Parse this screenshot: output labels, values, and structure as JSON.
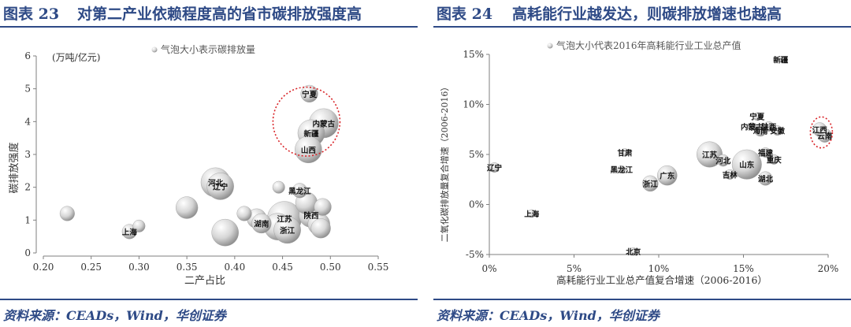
{
  "figures": [
    {
      "label": "图表 23",
      "title": "对第二产业依赖程度高的省市碳排放强度高",
      "source": "资料来源：CEADs，Wind，华创证券"
    },
    {
      "label": "图表 24",
      "title": "高耗能行业越发达，则碳排放增速也越高",
      "source": "资料来源：CEADs，Wind，华创证券"
    }
  ],
  "colors": {
    "accent": "#2e4a86",
    "highlight": "#d9262a",
    "bubble": "#d6d6d6",
    "axis": "#7f7f7f"
  },
  "chart_data": [
    {
      "type": "scatter",
      "subtype": "bubble",
      "title": "",
      "xlabel": "二产占比",
      "ylabel": "碳排放强度",
      "unit_label": "(万吨/亿元)",
      "legend": "气泡大小表示碳排放量",
      "legend_position": "top-center",
      "xlim": [
        0.2,
        0.55
      ],
      "ylim": [
        0,
        6
      ],
      "x_ticks": [
        "0.20",
        "0.25",
        "0.30",
        "0.35",
        "0.40",
        "0.45",
        "0.50",
        "0.55"
      ],
      "y_ticks": [
        "0",
        "1",
        "2",
        "3",
        "4",
        "5",
        "6"
      ],
      "grid": false,
      "highlight": {
        "type": "ellipse",
        "cx": 0.475,
        "cy": 4.0,
        "rx": 0.035,
        "ry": 1.05
      },
      "points": [
        {
          "x": 0.225,
          "y": 1.2,
          "size": 6,
          "label": ""
        },
        {
          "x": 0.29,
          "y": 0.65,
          "size": 6,
          "label": "上海"
        },
        {
          "x": 0.3,
          "y": 0.82,
          "size": 5,
          "label": ""
        },
        {
          "x": 0.35,
          "y": 1.38,
          "size": 9,
          "label": ""
        },
        {
          "x": 0.38,
          "y": 2.15,
          "size": 12,
          "label": "河北"
        },
        {
          "x": 0.385,
          "y": 2.03,
          "size": 11,
          "label": "辽宁"
        },
        {
          "x": 0.39,
          "y": 0.62,
          "size": 11,
          "label": ""
        },
        {
          "x": 0.41,
          "y": 1.2,
          "size": 6,
          "label": ""
        },
        {
          "x": 0.423,
          "y": 1.05,
          "size": 8,
          "label": ""
        },
        {
          "x": 0.428,
          "y": 0.9,
          "size": 8,
          "label": "湖南"
        },
        {
          "x": 0.445,
          "y": 0.8,
          "size": 11,
          "label": ""
        },
        {
          "x": 0.446,
          "y": 2.0,
          "size": 5,
          "label": ""
        },
        {
          "x": 0.452,
          "y": 1.05,
          "size": 14,
          "label": "江苏"
        },
        {
          "x": 0.455,
          "y": 0.7,
          "size": 11,
          "label": "浙江"
        },
        {
          "x": 0.468,
          "y": 1.9,
          "size": 6,
          "label": "黑龙江"
        },
        {
          "x": 0.475,
          "y": 1.52,
          "size": 9,
          "label": ""
        },
        {
          "x": 0.48,
          "y": 1.15,
          "size": 10,
          "label": "陕西"
        },
        {
          "x": 0.478,
          "y": 4.85,
          "size": 7,
          "label": "宁夏"
        },
        {
          "x": 0.493,
          "y": 3.95,
          "size": 12,
          "label": "内蒙古"
        },
        {
          "x": 0.48,
          "y": 3.65,
          "size": 11,
          "label": "新疆"
        },
        {
          "x": 0.477,
          "y": 3.15,
          "size": 11,
          "label": "山西"
        },
        {
          "x": 0.488,
          "y": 0.88,
          "size": 9,
          "label": ""
        },
        {
          "x": 0.49,
          "y": 0.75,
          "size": 8,
          "label": ""
        },
        {
          "x": 0.492,
          "y": 1.4,
          "size": 7,
          "label": ""
        }
      ]
    },
    {
      "type": "scatter",
      "subtype": "bubble",
      "title": "",
      "xlabel": "高耗能行业工业总产值复合增速（2006-2016）",
      "ylabel": "二氧化碳排放量复合增速（2006-2016）",
      "legend": "气泡大小代表2016年高耗能行业工业总产值",
      "legend_position": "top-center",
      "xlim": [
        0,
        0.2
      ],
      "ylim": [
        -0.05,
        0.15
      ],
      "x_ticks": [
        "0%",
        "5%",
        "10%",
        "15%",
        "20%"
      ],
      "y_ticks": [
        "-5%",
        "0%",
        "5%",
        "10%",
        "15%"
      ],
      "grid": false,
      "highlight": {
        "type": "circle",
        "cx": 0.196,
        "cy": 0.072,
        "rx": 0.0065,
        "ry": 0.0155
      },
      "points": [
        {
          "x": 0.003,
          "y": 0.037,
          "size": 5,
          "label": "辽宁"
        },
        {
          "x": 0.025,
          "y": -0.009,
          "size": 4,
          "label": "上海"
        },
        {
          "x": 0.08,
          "y": 0.052,
          "size": 4,
          "label": "甘肃"
        },
        {
          "x": 0.078,
          "y": 0.035,
          "size": 4,
          "label": "黑龙江"
        },
        {
          "x": 0.085,
          "y": -0.047,
          "size": 4,
          "label": "北京"
        },
        {
          "x": 0.095,
          "y": 0.021,
          "size": 8,
          "label": "浙江"
        },
        {
          "x": 0.105,
          "y": 0.029,
          "size": 10,
          "label": "广东"
        },
        {
          "x": 0.13,
          "y": 0.05,
          "size": 13,
          "label": "江苏"
        },
        {
          "x": 0.138,
          "y": 0.044,
          "size": 6,
          "label": "河北"
        },
        {
          "x": 0.142,
          "y": 0.03,
          "size": 5,
          "label": "吉林"
        },
        {
          "x": 0.152,
          "y": 0.04,
          "size": 15,
          "label": "山东"
        },
        {
          "x": 0.155,
          "y": 0.078,
          "size": 4,
          "label": "内蒙古"
        },
        {
          "x": 0.158,
          "y": 0.088,
          "size": 4,
          "label": "宁夏"
        },
        {
          "x": 0.16,
          "y": 0.074,
          "size": 6,
          "label": "海南"
        },
        {
          "x": 0.163,
          "y": 0.052,
          "size": 5,
          "label": "福建"
        },
        {
          "x": 0.163,
          "y": 0.026,
          "size": 7,
          "label": "湖北"
        },
        {
          "x": 0.165,
          "y": 0.078,
          "size": 5,
          "label": "陕西"
        },
        {
          "x": 0.168,
          "y": 0.045,
          "size": 5,
          "label": "重庆"
        },
        {
          "x": 0.17,
          "y": 0.074,
          "size": 5,
          "label": "安徽"
        },
        {
          "x": 0.172,
          "y": 0.145,
          "size": 3,
          "label": "新疆"
        },
        {
          "x": 0.195,
          "y": 0.075,
          "size": 7,
          "label": "江西"
        },
        {
          "x": 0.198,
          "y": 0.069,
          "size": 7,
          "label": "云南"
        }
      ]
    }
  ]
}
